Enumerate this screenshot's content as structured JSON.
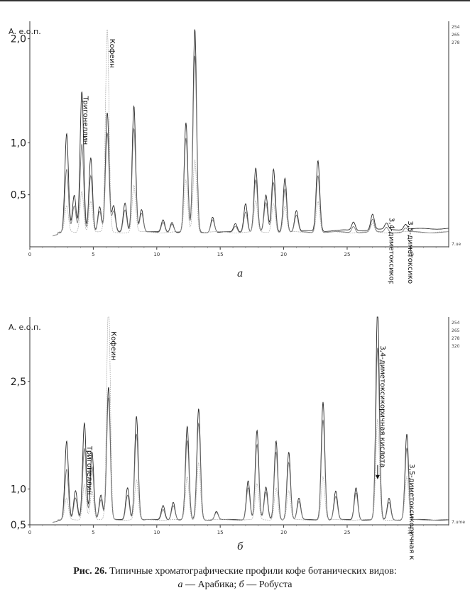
{
  "caption": {
    "label": "Рис. 26.",
    "text": "Типичные хроматографические профили кофе ботанических видов:",
    "sub_a_letter": "а",
    "sub_a_text": "Арабика;",
    "sub_b_letter": "б",
    "sub_b_text": "Робуста",
    "dash": "—"
  },
  "colors": {
    "trace1": "#2a2a2a",
    "trace2": "#777777",
    "trace3": "#aaaaaa",
    "axis": "#333333"
  },
  "chart_data": [
    {
      "type": "line",
      "panel_label": "а",
      "ylabel": "А. е.о.п.",
      "xlim": [
        0,
        33
      ],
      "ylim": [
        0,
        2.1
      ],
      "xticks": [
        0,
        5,
        10,
        15,
        20,
        25,
        30
      ],
      "yticks": [
        {
          "value": 0.5,
          "label": "0,5"
        },
        {
          "value": 1.0,
          "label": "1,0"
        },
        {
          "value": 2.0,
          "label": "2,0"
        }
      ],
      "right_legend": [
        "254",
        "265",
        "278",
        "7.ue"
      ],
      "annotations": [
        {
          "text": "Тригонеллин",
          "x": 4.0,
          "y": 1.45
        },
        {
          "text": "Кофеин",
          "x": 6.1,
          "y": 2.0
        },
        {
          "text": "3,4-диметоксикоричная кислота",
          "x": 28.1,
          "y": 0.28
        },
        {
          "text": "3,5-диметоксикоричная кислота",
          "x": 29.6,
          "y": 0.25
        }
      ],
      "baseline": 0.12,
      "series": [
        {
          "peaks": [
            [
              2.9,
              0.95
            ],
            [
              3.5,
              0.35
            ],
            [
              4.1,
              1.35
            ],
            [
              4.8,
              0.72
            ],
            [
              5.5,
              0.25
            ],
            [
              6.1,
              1.15
            ],
            [
              6.6,
              0.25
            ],
            [
              7.5,
              0.28
            ],
            [
              8.2,
              1.22
            ],
            [
              8.8,
              0.22
            ],
            [
              10.5,
              0.12
            ],
            [
              11.2,
              0.1
            ],
            [
              12.3,
              1.05
            ],
            [
              13.0,
              1.95
            ],
            [
              14.4,
              0.15
            ],
            [
              16.2,
              0.08
            ],
            [
              17.0,
              0.28
            ],
            [
              17.8,
              0.62
            ],
            [
              18.6,
              0.35
            ],
            [
              19.2,
              0.6
            ],
            [
              20.1,
              0.52
            ],
            [
              21.0,
              0.2
            ],
            [
              22.7,
              0.68
            ],
            [
              25.5,
              0.08
            ],
            [
              27.0,
              0.15
            ],
            [
              28.1,
              0.06
            ],
            [
              29.6,
              0.05
            ]
          ]
        },
        {
          "peaks": [
            [
              2.9,
              0.6
            ],
            [
              3.5,
              0.25
            ],
            [
              4.1,
              0.85
            ],
            [
              4.8,
              0.55
            ],
            [
              5.5,
              0.2
            ],
            [
              6.1,
              0.95
            ],
            [
              6.6,
              0.2
            ],
            [
              7.5,
              0.22
            ],
            [
              8.2,
              1.0
            ],
            [
              8.8,
              0.18
            ],
            [
              10.5,
              0.1
            ],
            [
              11.2,
              0.08
            ],
            [
              12.3,
              0.9
            ],
            [
              13.0,
              1.7
            ],
            [
              14.4,
              0.12
            ],
            [
              16.2,
              0.06
            ],
            [
              17.0,
              0.2
            ],
            [
              17.8,
              0.5
            ],
            [
              18.6,
              0.28
            ],
            [
              19.2,
              0.48
            ],
            [
              20.1,
              0.42
            ],
            [
              21.0,
              0.16
            ],
            [
              22.7,
              0.55
            ],
            [
              25.5,
              0.06
            ],
            [
              27.0,
              0.12
            ],
            [
              28.1,
              0.05
            ],
            [
              29.6,
              0.04
            ]
          ]
        },
        {
          "peaks": [
            [
              2.9,
              0.25
            ],
            [
              4.1,
              0.4
            ],
            [
              4.8,
              0.3
            ],
            [
              6.1,
              1.95
            ],
            [
              8.2,
              0.45
            ],
            [
              12.3,
              0.5
            ],
            [
              13.0,
              0.7
            ],
            [
              17.8,
              0.3
            ],
            [
              19.2,
              0.28
            ],
            [
              20.1,
              0.25
            ],
            [
              22.7,
              0.3
            ],
            [
              27.0,
              0.08
            ]
          ]
        }
      ]
    },
    {
      "type": "line",
      "panel_label": "б",
      "ylabel": "А. е.о.п.",
      "xlim": [
        0,
        33
      ],
      "ylim": [
        0.5,
        3.3
      ],
      "xticks": [
        0,
        5,
        10,
        15,
        20,
        25,
        30
      ],
      "yticks": [
        {
          "value": 0.5,
          "label": "0,5"
        },
        {
          "value": 1.0,
          "label": "1,0"
        },
        {
          "value": 2.5,
          "label": "2,5"
        }
      ],
      "right_legend": [
        "254",
        "265",
        "278",
        "320",
        "7.ume"
      ],
      "annotations": [
        {
          "text": "Тригонеллин",
          "x": 4.3,
          "y": 1.6
        },
        {
          "text": "Кофеин",
          "x": 6.2,
          "y": 3.2
        },
        {
          "text": "3,4-диметоксикоричная кислота",
          "x": 27.4,
          "y": 3.0
        },
        {
          "text": "3,5-диметоксикоричная кислота",
          "x": 29.7,
          "y": 1.35
        }
      ],
      "baseline": 0.55,
      "series": [
        {
          "peaks": [
            [
              2.9,
              1.1
            ],
            [
              3.6,
              0.4
            ],
            [
              4.3,
              1.35
            ],
            [
              4.9,
              0.95
            ],
            [
              5.6,
              0.35
            ],
            [
              6.2,
              1.85
            ],
            [
              7.7,
              0.45
            ],
            [
              8.4,
              1.45
            ],
            [
              10.5,
              0.2
            ],
            [
              11.3,
              0.25
            ],
            [
              12.4,
              1.3
            ],
            [
              13.3,
              1.55
            ],
            [
              14.7,
              0.12
            ],
            [
              17.2,
              0.55
            ],
            [
              17.9,
              1.25
            ],
            [
              18.6,
              0.45
            ],
            [
              19.4,
              1.1
            ],
            [
              20.4,
              0.95
            ],
            [
              21.2,
              0.3
            ],
            [
              23.1,
              1.65
            ],
            [
              24.1,
              0.4
            ],
            [
              25.7,
              0.45
            ],
            [
              27.4,
              2.95
            ],
            [
              28.3,
              0.3
            ],
            [
              29.7,
              1.2
            ]
          ]
        },
        {
          "peaks": [
            [
              2.9,
              0.7
            ],
            [
              3.6,
              0.3
            ],
            [
              4.3,
              1.0
            ],
            [
              4.9,
              0.75
            ],
            [
              5.6,
              0.28
            ],
            [
              6.2,
              1.7
            ],
            [
              7.7,
              0.35
            ],
            [
              8.4,
              1.2
            ],
            [
              10.5,
              0.15
            ],
            [
              11.3,
              0.2
            ],
            [
              12.4,
              1.1
            ],
            [
              13.3,
              1.35
            ],
            [
              14.7,
              0.1
            ],
            [
              17.2,
              0.45
            ],
            [
              17.9,
              1.05
            ],
            [
              18.6,
              0.38
            ],
            [
              19.4,
              0.95
            ],
            [
              20.4,
              0.8
            ],
            [
              21.2,
              0.25
            ],
            [
              23.1,
              1.4
            ],
            [
              24.1,
              0.32
            ],
            [
              25.7,
              0.38
            ],
            [
              27.4,
              2.4
            ],
            [
              28.3,
              0.25
            ],
            [
              29.7,
              1.0
            ]
          ]
        },
        {
          "peaks": [
            [
              2.9,
              0.3
            ],
            [
              4.3,
              0.5
            ],
            [
              4.9,
              0.4
            ],
            [
              6.2,
              3.1
            ],
            [
              8.4,
              0.55
            ],
            [
              12.4,
              0.6
            ],
            [
              13.3,
              0.8
            ],
            [
              17.9,
              0.5
            ],
            [
              19.4,
              0.45
            ],
            [
              20.4,
              0.4
            ],
            [
              23.1,
              0.6
            ],
            [
              27.4,
              1.4
            ],
            [
              29.7,
              0.6
            ]
          ]
        }
      ]
    }
  ]
}
